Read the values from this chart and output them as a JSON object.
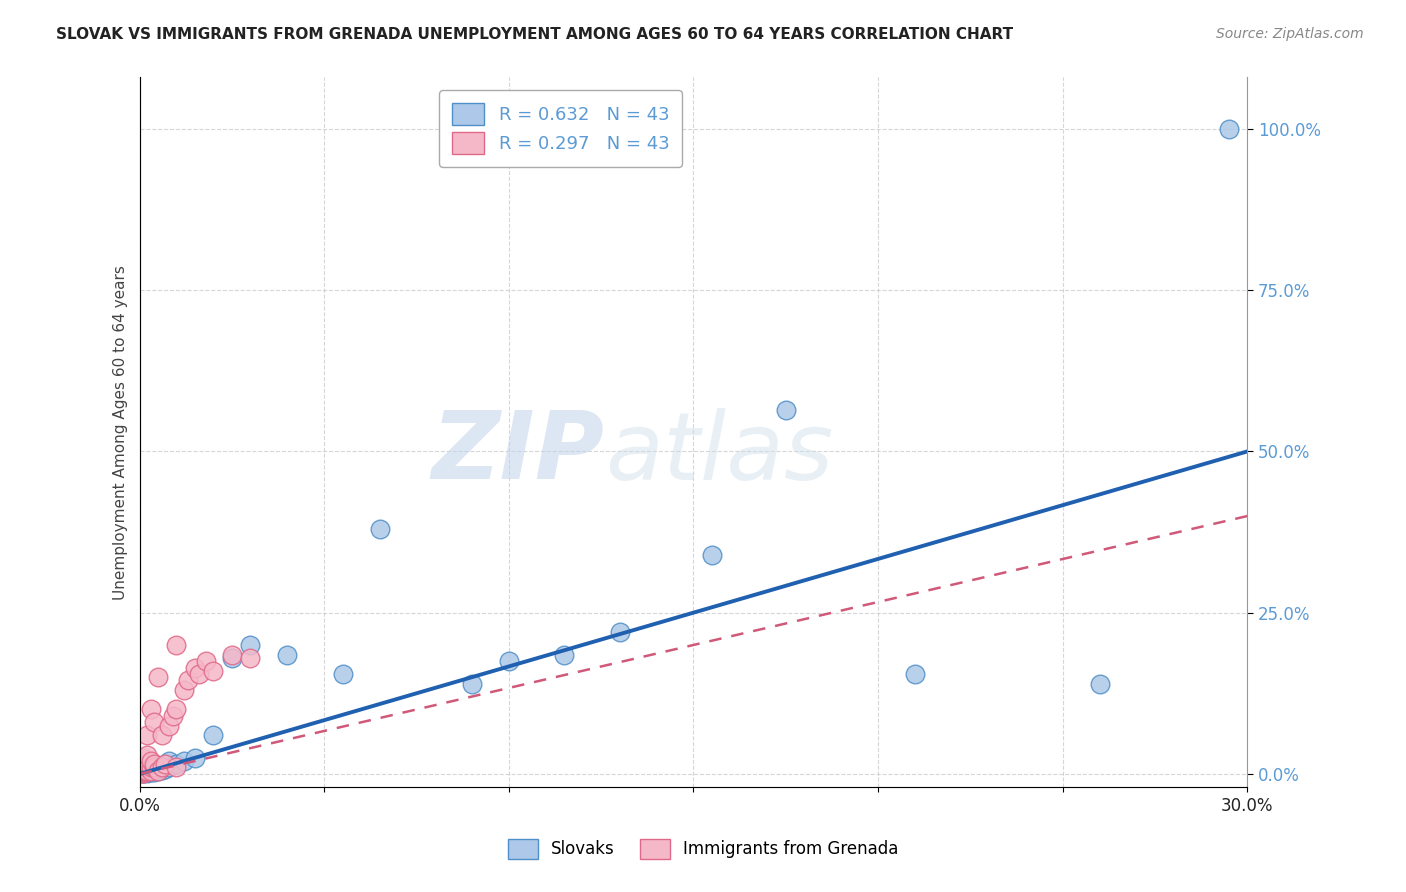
{
  "title": "SLOVAK VS IMMIGRANTS FROM GRENADA UNEMPLOYMENT AMONG AGES 60 TO 64 YEARS CORRELATION CHART",
  "source": "Source: ZipAtlas.com",
  "ylabel": "Unemployment Among Ages 60 to 64 years",
  "xlim": [
    0.0,
    0.3
  ],
  "ylim": [
    -0.02,
    1.08
  ],
  "yticks": [
    0.0,
    0.25,
    0.5,
    0.75,
    1.0
  ],
  "ytick_labels": [
    "0.0%",
    "25.0%",
    "50.0%",
    "75.0%",
    "100.0%"
  ],
  "xticks": [
    0.0,
    0.05,
    0.1,
    0.15,
    0.2,
    0.25,
    0.3
  ],
  "xtick_labels": [
    "0.0%",
    "",
    "",
    "",
    "",
    "",
    "30.0%"
  ],
  "R_slovak": 0.632,
  "N_slovak": 43,
  "R_grenada": 0.297,
  "N_grenada": 43,
  "slovak_color": "#adc8e8",
  "grenada_color": "#f5b8c8",
  "slovak_edge_color": "#5090c8",
  "grenada_edge_color": "#e06888",
  "slovak_line_color": "#2060b0",
  "grenada_line_color": "#d05878",
  "title_color": "#222222",
  "axis_label_color": "#444444",
  "tick_color_y": "#5b9bd5",
  "tick_color_x": "#222222",
  "watermark_zip": "ZIP",
  "watermark_atlas": "atlas",
  "legend_slovak_label": "Slovaks",
  "legend_grenada_label": "Immigrants from Grenada",
  "slovak_x": [
    0.001,
    0.001,
    0.001,
    0.001,
    0.001,
    0.002,
    0.002,
    0.002,
    0.002,
    0.003,
    0.003,
    0.003,
    0.003,
    0.004,
    0.004,
    0.004,
    0.005,
    0.005,
    0.005,
    0.006,
    0.006,
    0.007,
    0.007,
    0.008,
    0.008,
    0.01,
    0.012,
    0.015,
    0.02,
    0.025,
    0.03,
    0.04,
    0.055,
    0.065,
    0.09,
    0.1,
    0.115,
    0.13,
    0.155,
    0.175,
    0.21,
    0.26,
    0.295
  ],
  "slovak_y": [
    0.001,
    0.002,
    0.003,
    0.004,
    0.005,
    0.002,
    0.003,
    0.005,
    0.008,
    0.003,
    0.005,
    0.007,
    0.01,
    0.003,
    0.006,
    0.01,
    0.005,
    0.008,
    0.012,
    0.006,
    0.01,
    0.008,
    0.015,
    0.01,
    0.02,
    0.015,
    0.02,
    0.025,
    0.06,
    0.18,
    0.2,
    0.185,
    0.155,
    0.38,
    0.14,
    0.175,
    0.185,
    0.22,
    0.34,
    0.565,
    0.155,
    0.14,
    1.0
  ],
  "grenada_x": [
    0.001,
    0.001,
    0.001,
    0.001,
    0.001,
    0.001,
    0.001,
    0.001,
    0.001,
    0.001,
    0.001,
    0.001,
    0.001,
    0.002,
    0.002,
    0.002,
    0.002,
    0.002,
    0.003,
    0.003,
    0.003,
    0.003,
    0.004,
    0.004,
    0.004,
    0.005,
    0.005,
    0.006,
    0.006,
    0.007,
    0.008,
    0.009,
    0.01,
    0.01,
    0.01,
    0.012,
    0.013,
    0.015,
    0.016,
    0.018,
    0.02,
    0.025,
    0.03
  ],
  "grenada_y": [
    0.001,
    0.002,
    0.003,
    0.004,
    0.005,
    0.006,
    0.007,
    0.008,
    0.01,
    0.012,
    0.015,
    0.02,
    0.025,
    0.005,
    0.01,
    0.015,
    0.03,
    0.06,
    0.005,
    0.01,
    0.02,
    0.1,
    0.01,
    0.015,
    0.08,
    0.005,
    0.15,
    0.01,
    0.06,
    0.015,
    0.075,
    0.09,
    0.01,
    0.1,
    0.2,
    0.13,
    0.145,
    0.165,
    0.155,
    0.175,
    0.16,
    0.185,
    0.18
  ],
  "slovak_line_slope": 1.667,
  "slovak_line_intercept": 0.0,
  "grenada_line_slope": 1.333,
  "grenada_line_intercept": 0.0
}
